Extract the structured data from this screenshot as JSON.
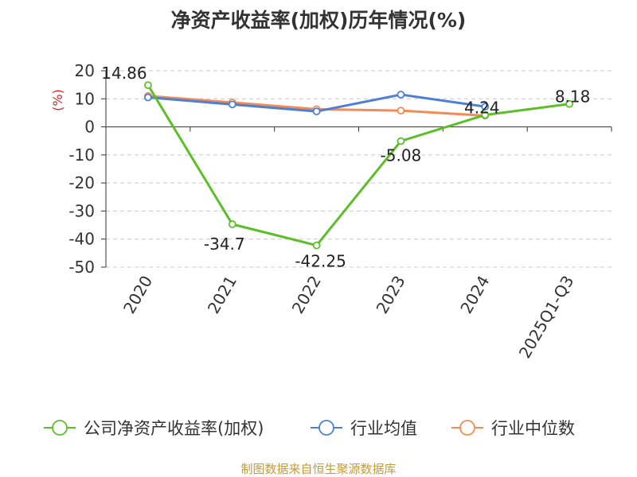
{
  "chart_title": "净资产收益率(加权)历年情况(%)",
  "source_note": "制图数据来自恒生聚源数据库",
  "chart_data": {
    "type": "line",
    "title": "净资产收益率(加权)历年情况(%)",
    "ylabel": "(%)",
    "xlabel": "",
    "categories": [
      "2020",
      "2021",
      "2022",
      "2023",
      "2024",
      "2025Q1-Q3"
    ],
    "ylim": [
      -50,
      20
    ],
    "yticks": [
      20,
      10,
      0,
      -10,
      -20,
      -30,
      -40,
      -50
    ],
    "ytick_labels": [
      "20",
      "10",
      "0",
      "-10",
      "-20",
      "-30",
      "-40",
      "-50"
    ],
    "grid": "horizontal dashed",
    "legend_position": "bottom",
    "series": [
      {
        "name": "公司净资产收益率(加权)",
        "color": "#5cbf28",
        "values": [
          14.86,
          -34.7,
          -42.25,
          -5.08,
          4.24,
          8.18
        ],
        "data_labels": [
          "14.86",
          "-34.7",
          "-42.25",
          "-5.08",
          "4.24",
          "8.18"
        ]
      },
      {
        "name": "行业均值",
        "color": "#4e7fd6",
        "values": [
          10.5,
          8.0,
          5.5,
          11.5,
          7.2,
          null
        ]
      },
      {
        "name": "行业中位数",
        "color": "#f28c55",
        "values": [
          11.0,
          8.7,
          6.3,
          5.8,
          4.0,
          null
        ]
      }
    ]
  }
}
